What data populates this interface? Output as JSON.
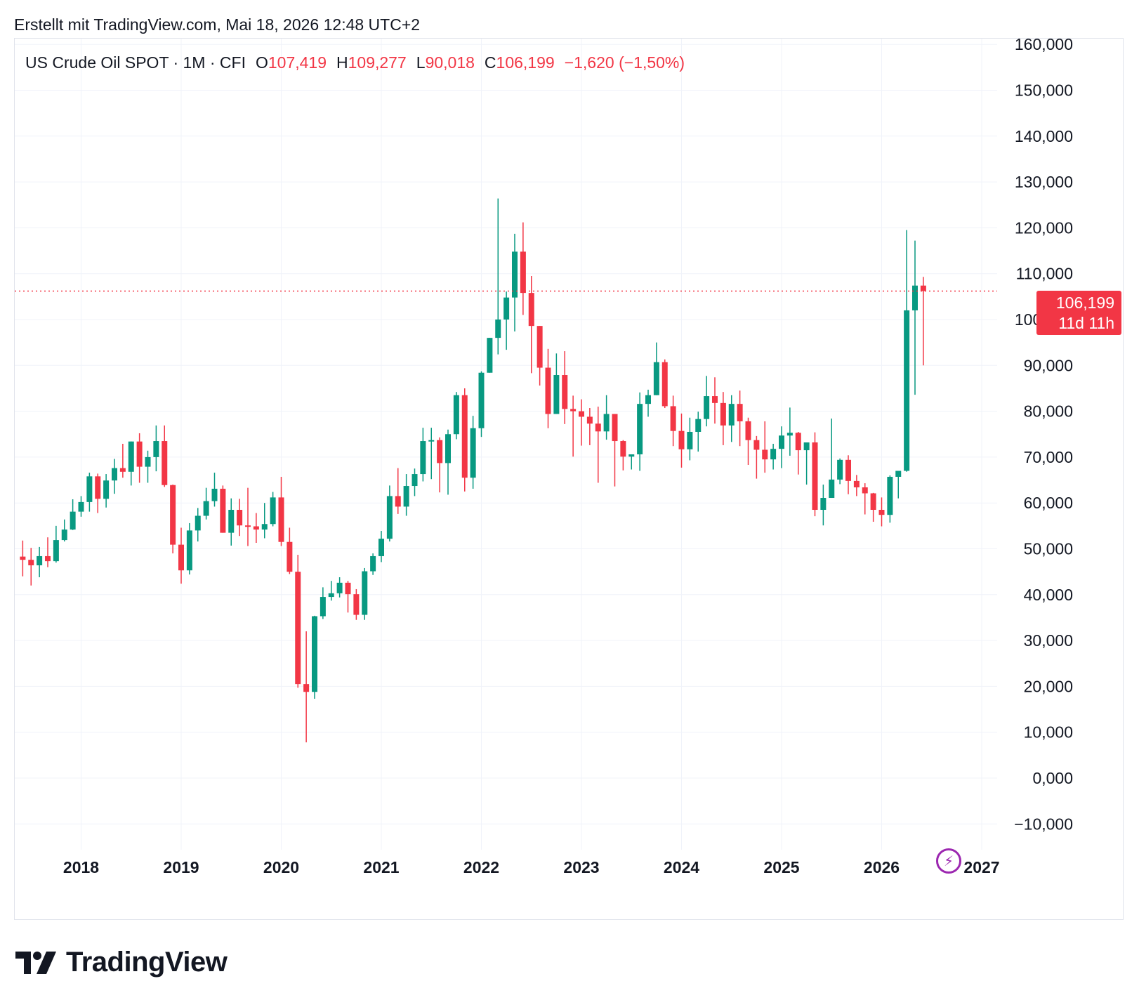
{
  "header": {
    "created_text": "Erstellt mit TradingView.com, Mai 18, 2026 12:48 UTC+2"
  },
  "legend": {
    "symbol": "US Crude Oil SPOT · 1M · CFI",
    "o_label": "O",
    "o_value": "107,419",
    "h_label": "H",
    "h_value": "109,277",
    "l_label": "L",
    "l_value": "90,018",
    "c_label": "C",
    "c_value": "106,199",
    "change": "−1,620 (−1,50%)"
  },
  "price_tag": {
    "price": "106,199",
    "countdown": "11d 11h"
  },
  "brand": {
    "name": "TradingView"
  },
  "colors": {
    "up": "#089981",
    "down": "#f23645",
    "grid": "#f0f3fa",
    "text": "#131722",
    "accent": "#9c27b0"
  },
  "icons": {
    "flash": "lightning-icon",
    "logo": "tradingview-logo-icon"
  },
  "chart_data": {
    "type": "candlestick",
    "interval": "1M",
    "ylim": [
      -15000,
      163000
    ],
    "y_ticks": [
      -10000,
      0,
      10000,
      20000,
      30000,
      40000,
      50000,
      60000,
      70000,
      80000,
      90000,
      100000,
      110000,
      120000,
      130000,
      140000,
      150000,
      160000
    ],
    "y_tick_labels": [
      "−10,000",
      "0,000",
      "10,000",
      "20,000",
      "30,000",
      "40,000",
      "50,000",
      "60,000",
      "70,000",
      "80,000",
      "90,000",
      "100,000",
      "110,000",
      "120,000",
      "130,000",
      "140,000",
      "150,000",
      "160,000"
    ],
    "x_ticks": [
      "2018",
      "2019",
      "2020",
      "2021",
      "2022",
      "2023",
      "2024",
      "2025",
      "2026",
      "2027"
    ],
    "grid": true,
    "last_price": 106199,
    "start": "2017-06",
    "candles": [
      [
        48.3,
        51.8,
        44.0,
        47.6
      ],
      [
        47.6,
        50.2,
        42.0,
        46.4
      ],
      [
        46.4,
        50.4,
        43.8,
        48.4
      ],
      [
        48.4,
        52.5,
        46.0,
        47.3
      ],
      [
        47.3,
        55.0,
        47.0,
        51.9
      ],
      [
        51.9,
        56.4,
        51.6,
        54.2
      ],
      [
        54.2,
        60.8,
        54.1,
        58.1
      ],
      [
        58.1,
        61.5,
        57.0,
        60.2
      ],
      [
        60.2,
        66.6,
        58.1,
        65.8
      ],
      [
        65.8,
        66.4,
        57.8,
        60.9
      ],
      [
        60.9,
        66.3,
        59.0,
        64.9
      ],
      [
        64.9,
        69.6,
        62.0,
        67.6
      ],
      [
        67.6,
        72.9,
        65.5,
        66.8
      ],
      [
        66.8,
        73.4,
        63.8,
        73.4
      ],
      [
        73.4,
        75.2,
        64.4,
        67.9
      ],
      [
        67.9,
        71.4,
        64.4,
        70.0
      ],
      [
        70.0,
        76.9,
        66.9,
        73.5
      ],
      [
        73.5,
        76.9,
        63.5,
        63.9
      ],
      [
        63.9,
        64.0,
        49.0,
        50.9
      ],
      [
        50.9,
        54.6,
        42.4,
        45.3
      ],
      [
        45.3,
        55.6,
        44.4,
        54.0
      ],
      [
        54.0,
        58.9,
        51.6,
        57.2
      ],
      [
        57.2,
        63.3,
        56.4,
        60.4
      ],
      [
        60.4,
        66.6,
        59.2,
        63.1
      ],
      [
        63.1,
        63.8,
        53.8,
        53.5
      ],
      [
        53.5,
        61.0,
        50.7,
        58.5
      ],
      [
        58.5,
        60.9,
        52.8,
        55.1
      ],
      [
        55.1,
        63.3,
        50.6,
        54.9
      ],
      [
        54.9,
        57.8,
        51.3,
        54.2
      ],
      [
        54.2,
        60.0,
        52.3,
        55.4
      ],
      [
        55.4,
        62.4,
        54.9,
        61.2
      ],
      [
        61.2,
        65.7,
        50.6,
        51.5
      ],
      [
        51.5,
        54.6,
        44.5,
        45.0
      ],
      [
        45.0,
        48.7,
        19.7,
        20.5
      ],
      [
        20.5,
        32.0,
        7.8,
        18.8
      ],
      [
        18.8,
        35.4,
        17.3,
        35.3
      ],
      [
        35.3,
        41.6,
        34.7,
        39.5
      ],
      [
        39.5,
        43.0,
        38.7,
        40.3
      ],
      [
        40.3,
        43.8,
        39.4,
        42.6
      ],
      [
        42.6,
        43.0,
        36.1,
        40.1
      ],
      [
        40.1,
        41.2,
        34.5,
        35.6
      ],
      [
        35.6,
        45.8,
        34.5,
        45.1
      ],
      [
        45.1,
        49.0,
        44.3,
        48.4
      ],
      [
        48.4,
        53.9,
        47.1,
        52.2
      ],
      [
        52.2,
        63.8,
        51.6,
        61.5
      ],
      [
        61.5,
        67.6,
        57.6,
        59.2
      ],
      [
        59.2,
        66.3,
        57.2,
        63.7
      ],
      [
        63.7,
        67.5,
        61.5,
        66.3
      ],
      [
        66.3,
        76.4,
        64.7,
        73.5
      ],
      [
        73.5,
        76.4,
        65.2,
        73.7
      ],
      [
        73.7,
        74.3,
        62.3,
        68.7
      ],
      [
        68.7,
        76.0,
        61.8,
        75.0
      ],
      [
        75.0,
        84.2,
        73.9,
        83.5
      ],
      [
        83.5,
        85.0,
        62.5,
        65.5
      ],
      [
        65.5,
        79.0,
        63.1,
        76.3
      ],
      [
        76.3,
        88.7,
        74.4,
        88.4
      ],
      [
        88.4,
        96.0,
        88.5,
        96.0
      ],
      [
        96.0,
        126.4,
        92.4,
        100.0
      ],
      [
        100.0,
        106.1,
        93.4,
        104.8
      ],
      [
        104.8,
        118.7,
        97.4,
        114.8
      ],
      [
        114.8,
        121.2,
        101.0,
        105.8
      ],
      [
        105.8,
        109.5,
        88.3,
        98.6
      ],
      [
        98.6,
        97.4,
        85.6,
        89.5
      ],
      [
        89.5,
        93.6,
        76.3,
        79.4
      ],
      [
        79.4,
        92.6,
        81.3,
        87.9
      ],
      [
        87.9,
        93.1,
        77.2,
        80.5
      ],
      [
        80.5,
        83.4,
        70.1,
        80.0
      ],
      [
        80.0,
        82.6,
        72.5,
        78.8
      ],
      [
        78.8,
        80.7,
        72.6,
        77.3
      ],
      [
        77.3,
        81.0,
        64.4,
        75.6
      ],
      [
        75.6,
        83.5,
        73.8,
        79.4
      ],
      [
        79.4,
        79.2,
        63.6,
        73.5
      ],
      [
        73.5,
        73.7,
        67.1,
        70.1
      ],
      [
        70.1,
        70.5,
        67.3,
        70.6
      ],
      [
        70.6,
        84.1,
        67.0,
        81.6
      ],
      [
        81.6,
        84.7,
        78.8,
        83.5
      ],
      [
        83.5,
        95.0,
        83.5,
        90.7
      ],
      [
        90.7,
        91.3,
        80.7,
        81.1
      ],
      [
        81.1,
        83.4,
        72.4,
        75.7
      ],
      [
        75.7,
        79.5,
        67.7,
        71.7
      ],
      [
        71.7,
        78.6,
        69.3,
        75.5
      ],
      [
        75.5,
        79.9,
        71.2,
        78.3
      ],
      [
        78.3,
        87.7,
        76.7,
        83.3
      ],
      [
        83.3,
        87.4,
        77.3,
        81.8
      ],
      [
        81.8,
        84.2,
        72.6,
        76.9
      ],
      [
        76.9,
        83.5,
        73.3,
        81.6
      ],
      [
        81.6,
        84.5,
        72.4,
        77.8
      ],
      [
        77.8,
        78.6,
        68.3,
        73.7
      ],
      [
        73.7,
        74.6,
        65.3,
        71.6
      ],
      [
        71.6,
        77.8,
        66.6,
        69.5
      ],
      [
        69.5,
        72.9,
        67.3,
        71.8
      ],
      [
        71.8,
        76.7,
        67.6,
        74.7
      ],
      [
        74.7,
        80.8,
        70.3,
        75.3
      ],
      [
        75.3,
        75.5,
        66.2,
        71.5
      ],
      [
        71.5,
        72.9,
        64.0,
        73.2
      ],
      [
        73.2,
        75.4,
        57.1,
        58.5
      ],
      [
        58.5,
        64.0,
        55.1,
        61.1
      ],
      [
        61.1,
        78.4,
        61.1,
        65.1
      ],
      [
        65.1,
        69.7,
        64.1,
        69.4
      ],
      [
        69.4,
        70.4,
        61.9,
        64.8
      ],
      [
        64.8,
        66.1,
        61.5,
        63.4
      ],
      [
        63.4,
        64.3,
        57.5,
        62.1
      ],
      [
        62.1,
        62.2,
        55.9,
        58.5
      ],
      [
        58.5,
        61.2,
        54.9,
        57.4
      ],
      [
        57.4,
        66.0,
        55.7,
        65.7
      ],
      [
        65.7,
        66.6,
        61.0,
        67.0
      ],
      [
        67.0,
        119.5,
        66.8,
        102.0
      ],
      [
        102.0,
        117.2,
        83.6,
        107.4
      ],
      [
        107.4,
        109.3,
        90.0,
        106.2
      ]
    ]
  }
}
